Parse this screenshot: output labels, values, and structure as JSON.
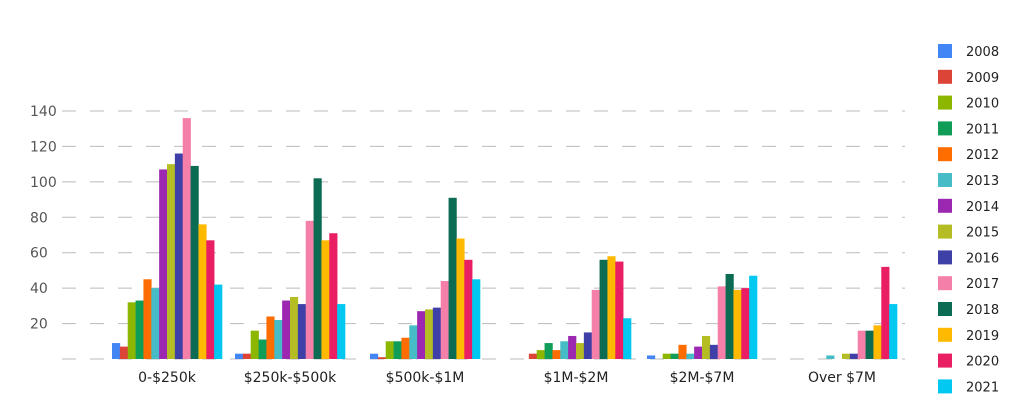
{
  "chart_data": {
    "type": "bar",
    "categories": [
      "0-$250k",
      "$250k-$500k",
      "$500k-$1M",
      "$1M-$2M",
      "$2M-$7M",
      "Over $7M"
    ],
    "ylim": [
      0,
      140
    ],
    "yticks": [
      20,
      40,
      60,
      80,
      100,
      120,
      140
    ],
    "grid": "dashed horizontal",
    "legend": "right",
    "series": [
      {
        "name": "2008",
        "color": "#4285F4",
        "values": [
          9,
          3,
          3,
          0,
          2,
          0
        ]
      },
      {
        "name": "2009",
        "color": "#DB4437",
        "values": [
          7,
          3,
          1,
          3,
          0,
          0
        ]
      },
      {
        "name": "2010",
        "color": "#8DB600",
        "values": [
          32,
          16,
          10,
          5,
          3,
          0
        ]
      },
      {
        "name": "2011",
        "color": "#0F9D58",
        "values": [
          33,
          11,
          10,
          9,
          3,
          0
        ]
      },
      {
        "name": "2012",
        "color": "#FF6D00",
        "values": [
          45,
          24,
          12,
          5,
          8,
          0
        ]
      },
      {
        "name": "2013",
        "color": "#46BDC6",
        "values": [
          40,
          22,
          19,
          10,
          3,
          2
        ]
      },
      {
        "name": "2014",
        "color": "#9C27B0",
        "values": [
          107,
          33,
          27,
          13,
          7,
          0
        ]
      },
      {
        "name": "2015",
        "color": "#B5BD25",
        "values": [
          110,
          35,
          28,
          9,
          13,
          3
        ]
      },
      {
        "name": "2016",
        "color": "#3F3FA8",
        "values": [
          116,
          31,
          29,
          15,
          8,
          3
        ]
      },
      {
        "name": "2017",
        "color": "#F47FA8",
        "values": [
          136,
          78,
          44,
          39,
          41,
          16
        ]
      },
      {
        "name": "2018",
        "color": "#0B6B53",
        "values": [
          109,
          102,
          91,
          56,
          48,
          16
        ]
      },
      {
        "name": "2019",
        "color": "#FFB900",
        "values": [
          76,
          67,
          68,
          58,
          39,
          19
        ]
      },
      {
        "name": "2020",
        "color": "#E91E63",
        "values": [
          67,
          71,
          56,
          55,
          40,
          52
        ]
      },
      {
        "name": "2021",
        "color": "#00C8F0",
        "values": [
          42,
          31,
          45,
          23,
          47,
          31
        ]
      }
    ]
  }
}
